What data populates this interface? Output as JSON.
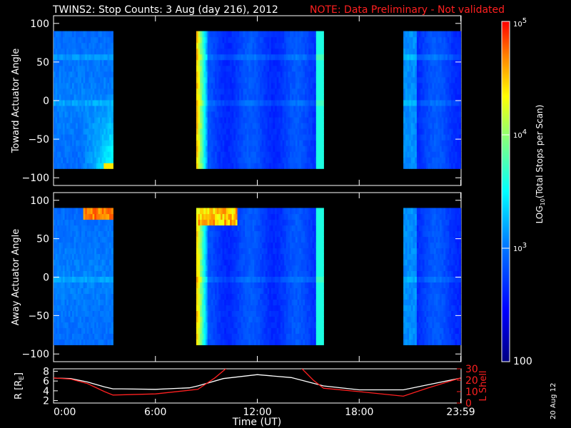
{
  "header": {
    "title": "TWINS2: Stop Counts:  3 Aug (day 216), 2012",
    "note": "NOTE: Data Preliminary - Not validated"
  },
  "stamp": "20 Aug 12",
  "colors": {
    "note": "#ff2020",
    "frame": "#ffffff",
    "background": "#000000",
    "l_shell": "#ff2020",
    "r_trace": "#ffffff"
  },
  "chart_data": [
    {
      "type": "heatmap",
      "panel": "toward",
      "ylabel": "Toward Actuator Angle",
      "ylim": [
        -110,
        110
      ],
      "yticks": [
        100,
        50,
        0,
        -50,
        -100
      ],
      "xlim": [
        0,
        24
      ],
      "data_coverage_hours": [
        [
          0.0,
          3.5
        ],
        [
          8.4,
          15.9
        ],
        [
          20.6,
          23.98
        ]
      ],
      "angle_range": [
        -88,
        90
      ],
      "log10_counts_profile": [
        {
          "time": 0.0,
          "angle": 60,
          "log10": 3.2
        },
        {
          "time": 2.5,
          "angle": -20,
          "log10": 3.5
        },
        {
          "time": 3.3,
          "angle": -85,
          "log10": 4.4
        },
        {
          "time": 8.5,
          "angle": 0,
          "log10": 4.8
        },
        {
          "time": 12.0,
          "angle": 0,
          "log10": 2.7
        },
        {
          "time": 22.0,
          "angle": 0,
          "log10": 2.8
        }
      ]
    },
    {
      "type": "heatmap",
      "panel": "away",
      "ylabel": "Away Actuator Angle",
      "ylim": [
        -110,
        110
      ],
      "yticks": [
        100,
        50,
        0,
        -50,
        -100
      ],
      "xlim": [
        0,
        24
      ],
      "data_coverage_hours": [
        [
          0.0,
          3.5
        ],
        [
          8.4,
          15.9
        ],
        [
          20.6,
          23.98
        ]
      ],
      "angle_range": [
        -88,
        90
      ],
      "log10_counts_profile": [
        {
          "time": 2.5,
          "angle": 82,
          "log10": 4.8
        },
        {
          "time": 8.5,
          "angle": 85,
          "log10": 4.7
        },
        {
          "time": 8.5,
          "angle": 0,
          "log10": 4.6
        },
        {
          "time": 12.0,
          "angle": 0,
          "log10": 2.7
        },
        {
          "time": 22.0,
          "angle": 0,
          "log10": 2.8
        }
      ]
    },
    {
      "type": "line",
      "panel": "orbit",
      "xlabel": "Time (UT)",
      "xticks": [
        "0:00",
        "6:00",
        "12:00",
        "18:00",
        "23:59"
      ],
      "xtick_hours": [
        0,
        6,
        12,
        18,
        23.98
      ],
      "xlim": [
        0,
        24
      ],
      "ylabel_left": "R [R",
      "ylabel_left_sub": "E",
      "ylabel_left_end": "]",
      "yticks_left": [
        "8",
        "6",
        "4",
        "2"
      ],
      "ylim_left": [
        1.5,
        8.5
      ],
      "ylabel_right": "L Shell",
      "yticks_right": [
        "30",
        "20",
        "10",
        "0"
      ],
      "ylim_right": [
        0,
        30
      ],
      "series": [
        {
          "axis": "left",
          "x": [
            0,
            1,
            2,
            3,
            3.5,
            4,
            6,
            8,
            8.5,
            10,
            12,
            14,
            15.9,
            18,
            20.6,
            22,
            23.98
          ],
          "y": [
            6.6,
            6.5,
            5.8,
            4.8,
            4.4,
            4.4,
            4.3,
            4.6,
            5.0,
            6.5,
            7.3,
            6.7,
            5.0,
            4.2,
            4.2,
            5.2,
            6.6
          ]
        },
        {
          "axis": "right",
          "x": [
            0,
            1,
            2,
            3,
            3.5,
            6,
            8.5,
            9.5,
            10.3,
            14.5,
            15.3,
            15.9,
            18,
            20.6,
            22,
            23.98
          ],
          "y": [
            22,
            21,
            17,
            10,
            7,
            8,
            12,
            22,
            32,
            32,
            20,
            13,
            10,
            6,
            13,
            22
          ]
        }
      ]
    },
    {
      "type": "colorbar",
      "label": "LOG",
      "label_sub": "10",
      "label_end": "(Total Stops per Scan)",
      "ticks": [
        {
          "text": "10",
          "sup": "5",
          "log10": 5
        },
        {
          "text": "10",
          "sup": "4",
          "log10": 4
        },
        {
          "text": "10",
          "sup": "3",
          "log10": 3
        },
        {
          "text": "100",
          "sup": "",
          "log10": 2
        }
      ],
      "range_log10": [
        2,
        5
      ]
    }
  ]
}
